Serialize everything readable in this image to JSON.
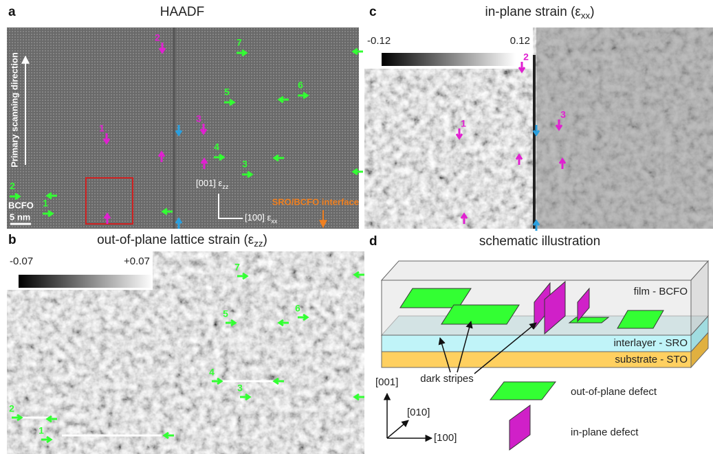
{
  "panels": {
    "a": {
      "letter": "a",
      "title": "HAADF",
      "scan_label": "Primary scanning direction",
      "material": "BCFO",
      "scale_bar": "5 nm",
      "axis_001": {
        "text": "[001] ε",
        "sub": "zz"
      },
      "axis_100": {
        "text": "[100] ε",
        "sub": "xx"
      },
      "interface": "SRO/BCFO interface",
      "green_labels": [
        "7",
        "5",
        "6",
        "4",
        "3",
        "2",
        "1"
      ],
      "magenta_labels": [
        "2",
        "1",
        "3"
      ]
    },
    "b": {
      "letter": "b",
      "title": {
        "text": "out-of-plane lattice strain (ε",
        "sub": "zz",
        "end": ")"
      },
      "colorbar_min": "-0.07",
      "colorbar_max": "+0.07",
      "green_labels": [
        "7",
        "5",
        "6",
        "4",
        "3",
        "2",
        "1"
      ]
    },
    "c": {
      "letter": "c",
      "title": {
        "text": "in-plane strain (ε",
        "sub": "xx",
        "end": ")"
      },
      "colorbar_min": "-0.12",
      "colorbar_max": "0.12",
      "magenta_labels": [
        "2",
        "1",
        "3"
      ]
    },
    "d": {
      "letter": "d",
      "title": "schematic illustration",
      "film": "film - BCFO",
      "interlayer": "interlayer - SRO",
      "substrate": "substrate - STO",
      "annotation": "dark stripes",
      "axes": [
        "[001]",
        "[010]",
        "[100]"
      ],
      "legend_out": "out-of-plane defect",
      "legend_in": "in-plane defect"
    }
  }
}
